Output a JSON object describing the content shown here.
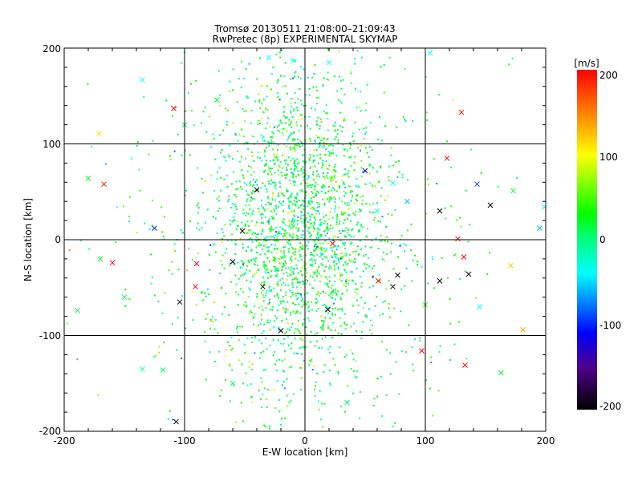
{
  "chart_data": {
    "type": "scatter",
    "title": "Tromsø 20130511 21:08:00–21:09:43",
    "subtitle": "RwPretec (8p) EXPERIMENTAL SKYMAP",
    "xlabel": "E-W location [km]",
    "ylabel": "N-S location [km]",
    "xlim": [
      -200,
      200
    ],
    "ylim": [
      -200,
      200
    ],
    "xticks": [
      "-200",
      "-100",
      "0",
      "100",
      "200"
    ],
    "yticks": [
      "-200",
      "-100",
      "0",
      "100",
      "200"
    ],
    "grid": true,
    "colorbar": {
      "label": "[m/s]",
      "range": [
        -200,
        200
      ],
      "ticks": [
        "200",
        "100",
        "0",
        "-100",
        "-200"
      ],
      "stops": [
        {
          "v": -200,
          "c": "#000000"
        },
        {
          "v": -150,
          "c": "#50008c"
        },
        {
          "v": -110,
          "c": "#0000ff"
        },
        {
          "v": -70,
          "c": "#0090ff"
        },
        {
          "v": -40,
          "c": "#00ffff"
        },
        {
          "v": 0,
          "c": "#00ff80"
        },
        {
          "v": 30,
          "c": "#00ff00"
        },
        {
          "v": 100,
          "c": "#ffff00"
        },
        {
          "v": 150,
          "c": "#ff8000"
        },
        {
          "v": 200,
          "c": "#ff0000"
        }
      ]
    },
    "dense_points": {
      "count": 2600,
      "x_center": -5,
      "y_center": 10,
      "x_spread": 35,
      "y_spread": 85,
      "velocity_center": 15,
      "velocity_spread": 35
    },
    "markers": [
      {
        "x": -109,
        "y": 137,
        "v": 200
      },
      {
        "x": -171,
        "y": 111,
        "v": 110
      },
      {
        "x": -167,
        "y": 58,
        "v": 190
      },
      {
        "x": -180,
        "y": 64,
        "v": 20
      },
      {
        "x": -125,
        "y": 12,
        "v": -100
      },
      {
        "x": -160,
        "y": -24,
        "v": 200
      },
      {
        "x": -90,
        "y": -25,
        "v": 200
      },
      {
        "x": -91,
        "y": -49,
        "v": 200
      },
      {
        "x": -104,
        "y": -65,
        "v": -200
      },
      {
        "x": -107,
        "y": -190,
        "v": -200
      },
      {
        "x": -52,
        "y": 9,
        "v": -200
      },
      {
        "x": -60,
        "y": -23,
        "v": -200
      },
      {
        "x": -35,
        "y": -49,
        "v": -200
      },
      {
        "x": 19,
        "y": -73,
        "v": -200
      },
      {
        "x": 23,
        "y": -4,
        "v": 200
      },
      {
        "x": 77,
        "y": -37,
        "v": -200
      },
      {
        "x": 73,
        "y": -49,
        "v": -190
      },
      {
        "x": 61,
        "y": -43,
        "v": 200
      },
      {
        "x": 112,
        "y": -43,
        "v": -200
      },
      {
        "x": 118,
        "y": 85,
        "v": 200
      },
      {
        "x": 112,
        "y": 30,
        "v": -200
      },
      {
        "x": 154,
        "y": 36,
        "v": -200
      },
      {
        "x": 127,
        "y": 1,
        "v": 200
      },
      {
        "x": 132,
        "y": -18,
        "v": 200
      },
      {
        "x": 136,
        "y": -36,
        "v": -200
      },
      {
        "x": 130,
        "y": 133,
        "v": 200
      },
      {
        "x": 133,
        "y": -131,
        "v": 200
      },
      {
        "x": 97,
        "y": -116,
        "v": 200
      },
      {
        "x": 171,
        "y": -27,
        "v": 120
      },
      {
        "x": 181,
        "y": -94,
        "v": 140
      },
      {
        "x": 199,
        "y": 34,
        "v": -40
      },
      {
        "x": 173,
        "y": 51,
        "v": 20
      },
      {
        "x": 104,
        "y": 195,
        "v": -40
      },
      {
        "x": 143,
        "y": 58,
        "v": -90
      },
      {
        "x": 73,
        "y": 59,
        "v": -40
      },
      {
        "x": 50,
        "y": 72,
        "v": -110
      },
      {
        "x": 163,
        "y": -139,
        "v": 20
      },
      {
        "x": -118,
        "y": -136,
        "v": 0
      },
      {
        "x": -135,
        "y": 167,
        "v": -40
      },
      {
        "x": -73,
        "y": 146,
        "v": 20
      },
      {
        "x": -189,
        "y": -74,
        "v": 20
      },
      {
        "x": 100,
        "y": -68,
        "v": 40
      },
      {
        "x": -135,
        "y": -135,
        "v": -20
      },
      {
        "x": -150,
        "y": -60,
        "v": 10
      },
      {
        "x": -170,
        "y": -20,
        "v": 20
      },
      {
        "x": -40,
        "y": 52,
        "v": -200
      },
      {
        "x": -30,
        "y": 190,
        "v": -40
      },
      {
        "x": -10,
        "y": 187,
        "v": -30
      },
      {
        "x": 20,
        "y": 185,
        "v": -40
      },
      {
        "x": 60,
        "y": 30,
        "v": -40
      },
      {
        "x": 85,
        "y": 40,
        "v": -60
      },
      {
        "x": -20,
        "y": -95,
        "v": -200
      },
      {
        "x": 35,
        "y": -170,
        "v": 0
      },
      {
        "x": -60,
        "y": -150,
        "v": 10
      },
      {
        "x": 195,
        "y": 12,
        "v": -60
      },
      {
        "x": 145,
        "y": -70,
        "v": -40
      },
      {
        "x": -100,
        "y": 120,
        "v": 0
      }
    ]
  }
}
